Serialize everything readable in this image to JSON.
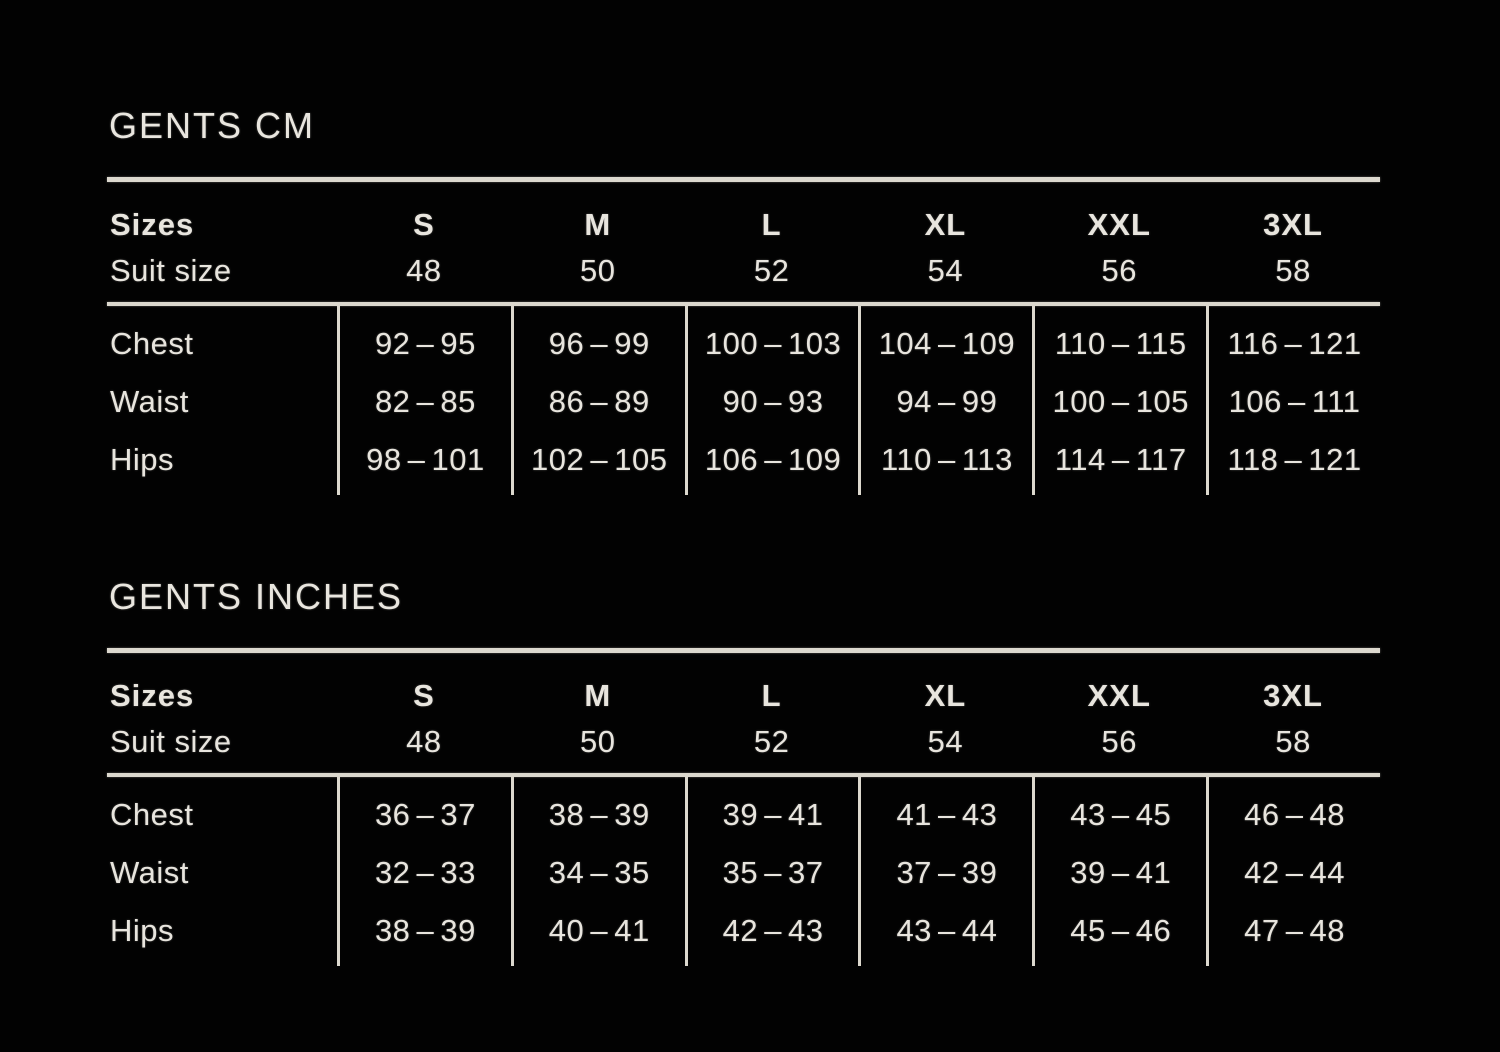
{
  "page": {
    "background_color": "#000000",
    "text_color": "#e8e5de",
    "line_color": "#dcd8ce"
  },
  "tables": [
    {
      "title": "GENTS CM",
      "sizes_label": "Sizes",
      "suit_size_label": "Suit size",
      "size_names": [
        "S",
        "M",
        "L",
        "XL",
        "XXL",
        "3XL"
      ],
      "suit_sizes": [
        "48",
        "50",
        "52",
        "54",
        "56",
        "58"
      ],
      "rows": [
        {
          "label": "Chest",
          "values": [
            "92 – 95",
            "96 – 99",
            "100 – 103",
            "104 – 109",
            "110 – 115",
            "116 – 121"
          ]
        },
        {
          "label": "Waist",
          "values": [
            "82 – 85",
            "86 – 89",
            "90 – 93",
            "94 – 99",
            "100 – 105",
            "106 – 111"
          ]
        },
        {
          "label": "Hips",
          "values": [
            "98 – 101",
            "102 – 105",
            "106 – 109",
            "110 – 113",
            "114 – 117",
            "118 – 121"
          ]
        }
      ]
    },
    {
      "title": "GENTS INCHES",
      "sizes_label": "Sizes",
      "suit_size_label": "Suit size",
      "size_names": [
        "S",
        "M",
        "L",
        "XL",
        "XXL",
        "3XL"
      ],
      "suit_sizes": [
        "48",
        "50",
        "52",
        "54",
        "56",
        "58"
      ],
      "rows": [
        {
          "label": "Chest",
          "values": [
            "36 – 37",
            "38 – 39",
            "39 – 41",
            "41 – 43",
            "43 – 45",
            "46 – 48"
          ]
        },
        {
          "label": "Waist",
          "values": [
            "32 – 33",
            "34 – 35",
            "35 – 37",
            "37 – 39",
            "39 – 41",
            "42 – 44"
          ]
        },
        {
          "label": "Hips",
          "values": [
            "38 – 39",
            "40 – 41",
            "42 – 43",
            "43 – 44",
            "45 – 46",
            "47 – 48"
          ]
        }
      ]
    }
  ]
}
